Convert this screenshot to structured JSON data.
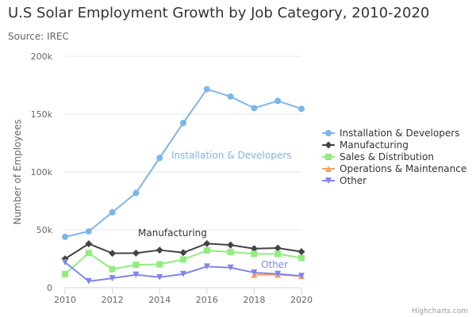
{
  "chart_data": {
    "type": "line",
    "title": "U.S Solar Employment Growth by Job Category, 2010-2020",
    "subtitle": "Source: IREC",
    "xlabel": "",
    "ylabel": "Number of Employees",
    "xlim": [
      2010,
      2020
    ],
    "ylim": [
      0,
      200000
    ],
    "x_ticks": [
      "2010",
      "2012",
      "2014",
      "2016",
      "2018",
      "2020"
    ],
    "y_ticks": [
      "0",
      "50k",
      "100k",
      "150k",
      "200k"
    ],
    "y_tick_values": [
      0,
      50000,
      100000,
      150000,
      200000
    ],
    "grid": true,
    "legend_position": "right",
    "credit": "Highcharts.com",
    "series": [
      {
        "name": "Installation & Developers",
        "label": "Installation & Developers",
        "color": "#7cb5ec",
        "marker": "circle",
        "x": [
          2010,
          2011,
          2012,
          2013,
          2014,
          2015,
          2016,
          2017,
          2018,
          2019,
          2020
        ],
        "values": [
          43934,
          48656,
          65165,
          81827,
          112143,
          142383,
          171533,
          165174,
          155157,
          161454,
          154610
        ]
      },
      {
        "name": "Manufacturing",
        "label": "Manufacturing",
        "color": "#434348",
        "marker": "diamond",
        "x": [
          2010,
          2011,
          2012,
          2013,
          2014,
          2015,
          2016,
          2017,
          2018,
          2019,
          2020
        ],
        "values": [
          24916,
          37941,
          29742,
          29851,
          32490,
          30282,
          38121,
          36885,
          33726,
          34243,
          31050
        ]
      },
      {
        "name": "Sales & Distribution",
        "label": "",
        "color": "#90ed7d",
        "marker": "square",
        "x": [
          2010,
          2011,
          2012,
          2013,
          2014,
          2015,
          2016,
          2017,
          2018,
          2019,
          2020
        ],
        "values": [
          11744,
          30000,
          16005,
          19771,
          20185,
          24377,
          32147,
          30912,
          29243,
          29213,
          25663
        ]
      },
      {
        "name": "Operations & Maintenance",
        "label": "",
        "color": "#f7a35c",
        "marker": "triangle",
        "x": [
          2018,
          2019,
          2020
        ],
        "values": [
          11164,
          11218,
          10077
        ]
      },
      {
        "name": "Other",
        "label": "Other",
        "color": "#8085e9",
        "marker": "triangle-down",
        "x": [
          2010,
          2011,
          2012,
          2013,
          2014,
          2015,
          2016,
          2017,
          2018,
          2019,
          2020
        ],
        "values": [
          21908,
          5548,
          8105,
          11248,
          8989,
          11816,
          18274,
          17300,
          13053,
          11906,
          10073
        ]
      }
    ]
  }
}
